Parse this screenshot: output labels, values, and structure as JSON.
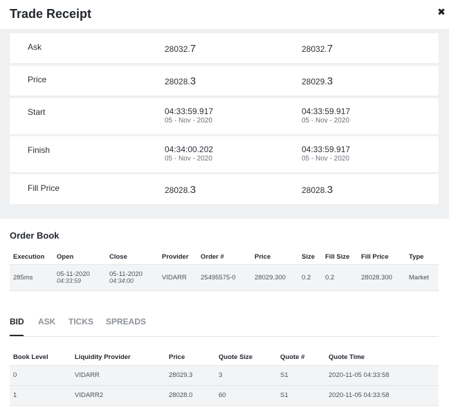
{
  "header": {
    "title": "Trade Receipt",
    "close_glyph": "✖"
  },
  "receipt": {
    "rows": [
      {
        "label": "Ask",
        "c1": {
          "int": "28032.",
          "big": "7"
        },
        "c2": {
          "int": "28032.",
          "big": "7"
        }
      },
      {
        "label": "Price",
        "c1": {
          "int": "28028.",
          "big": "3"
        },
        "c2": {
          "int": "28029.",
          "big": "3"
        }
      },
      {
        "label": "Start",
        "c1": {
          "time": "04:33:59.917",
          "date": "05 - Nov - 2020"
        },
        "c2": {
          "time": "04:33:59.917",
          "date": "05 - Nov - 2020"
        }
      },
      {
        "label": "Finish",
        "c1": {
          "time": "04:34:00.202",
          "date": "05 - Nov - 2020"
        },
        "c2": {
          "time": "04:33:59.917",
          "date": "05 - Nov - 2020"
        }
      },
      {
        "label": "Fill Price",
        "c1": {
          "int": "28028.",
          "big": "3"
        },
        "c2": {
          "int": "28028.",
          "big": "3"
        }
      }
    ]
  },
  "order_book": {
    "title": "Order Book",
    "columns": [
      "Execution",
      "Open",
      "Close",
      "Provider",
      "Order #",
      "Price",
      "Size",
      "Fill Size",
      "Fill Price",
      "Type"
    ],
    "row": {
      "execution": "285ms",
      "open_date": "05-11-2020",
      "open_time": "04:33:59",
      "close_date": "05-11-2020",
      "close_time": "04:34:00",
      "provider": "VIDARR",
      "order": "25495575-0",
      "price": "28029.300",
      "size": "0.2",
      "fill_size": "0.2",
      "fill_price": "28028.300",
      "type": "Market"
    }
  },
  "tabs": {
    "items": [
      "BID",
      "ASK",
      "TICKS",
      "SPREADS"
    ],
    "active": "BID"
  },
  "bid_table": {
    "columns": [
      "Book Level",
      "Liquidity Provider",
      "Price",
      "Quote Size",
      "Quote #",
      "Quote Time"
    ],
    "rows": [
      [
        "0",
        "VIDARR",
        "28029.3",
        "3",
        "S1",
        "2020-11-05 04:33:58"
      ],
      [
        "1",
        "VIDARR2",
        "28028.0",
        "60",
        "S1",
        "2020-11-05 04:33:58"
      ]
    ]
  }
}
